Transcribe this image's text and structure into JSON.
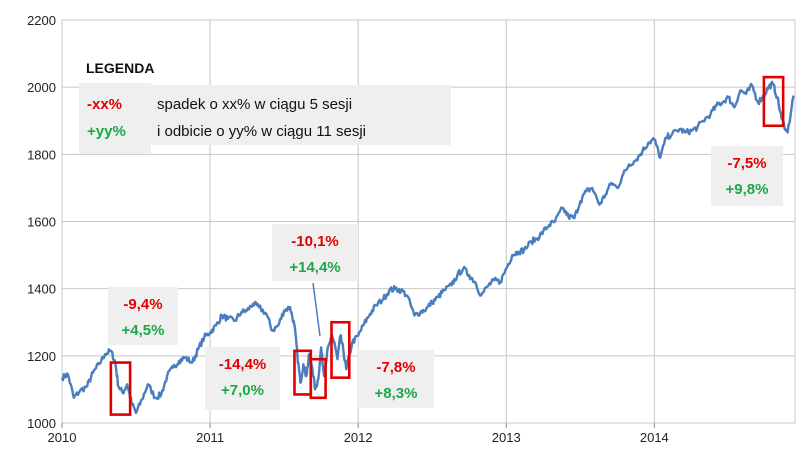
{
  "chart_data": {
    "type": "line",
    "title": "",
    "xlabel": "",
    "ylabel": "",
    "grid": true,
    "ylim": [
      1000,
      2200
    ],
    "y_ticks": [
      1000,
      1200,
      1400,
      1600,
      1800,
      2000,
      2200
    ],
    "x_ticks": [
      "2010",
      "2011",
      "2012",
      "2013",
      "2014"
    ],
    "xlim": [
      2010.0,
      2014.95
    ],
    "colors": {
      "line": "#4a7dbe",
      "box": "#e00000",
      "down": "#e00000",
      "up": "#1aa84a",
      "grid": "#c8c8c8",
      "ann_bg": "#efefef"
    },
    "series": [
      {
        "x": [
          2010.0,
          2010.04,
          2010.08,
          2010.12,
          2010.17,
          2010.21,
          2010.25,
          2010.29,
          2010.33,
          2010.36,
          2010.38,
          2010.41,
          2010.44,
          2010.47,
          2010.5,
          2010.54,
          2010.58,
          2010.63,
          2010.67,
          2010.71,
          2010.75,
          2010.79,
          2010.83,
          2010.88,
          2010.92,
          2010.96,
          2011.0,
          2011.04,
          2011.08,
          2011.12,
          2011.17,
          2011.21,
          2011.25,
          2011.29,
          2011.33,
          2011.38,
          2011.42,
          2011.46,
          2011.5,
          2011.54,
          2011.57,
          2011.59,
          2011.61,
          2011.63,
          2011.65,
          2011.67,
          2011.69,
          2011.71,
          2011.73,
          2011.75,
          2011.77,
          2011.79,
          2011.82,
          2011.84,
          2011.86,
          2011.88,
          2011.9,
          2011.92,
          2011.96,
          2012.0,
          2012.04,
          2012.08,
          2012.12,
          2012.17,
          2012.21,
          2012.25,
          2012.29,
          2012.33,
          2012.38,
          2012.42,
          2012.46,
          2012.5,
          2012.54,
          2012.58,
          2012.63,
          2012.67,
          2012.71,
          2012.75,
          2012.79,
          2012.83,
          2012.88,
          2012.92,
          2012.96,
          2013.0,
          2013.04,
          2013.08,
          2013.12,
          2013.17,
          2013.21,
          2013.25,
          2013.29,
          2013.33,
          2013.38,
          2013.42,
          2013.46,
          2013.5,
          2013.54,
          2013.58,
          2013.63,
          2013.67,
          2013.71,
          2013.75,
          2013.79,
          2013.83,
          2013.88,
          2013.92,
          2013.96,
          2014.0,
          2014.04,
          2014.08,
          2014.12,
          2014.17,
          2014.21,
          2014.25,
          2014.29,
          2014.33,
          2014.38,
          2014.42,
          2014.46,
          2014.5,
          2014.54,
          2014.58,
          2014.62,
          2014.66,
          2014.7,
          2014.74,
          2014.77,
          2014.8,
          2014.83,
          2014.86,
          2014.9,
          2014.94
        ],
        "values": [
          1135,
          1145,
          1075,
          1095,
          1110,
          1150,
          1175,
          1205,
          1215,
          1180,
          1110,
          1090,
          1115,
          1060,
          1030,
          1070,
          1115,
          1075,
          1085,
          1140,
          1165,
          1185,
          1195,
          1180,
          1220,
          1255,
          1270,
          1290,
          1320,
          1310,
          1305,
          1330,
          1335,
          1355,
          1345,
          1325,
          1275,
          1290,
          1335,
          1345,
          1290,
          1200,
          1120,
          1175,
          1140,
          1205,
          1165,
          1100,
          1130,
          1225,
          1140,
          1210,
          1255,
          1240,
          1190,
          1260,
          1215,
          1160,
          1240,
          1260,
          1295,
          1325,
          1350,
          1370,
          1395,
          1400,
          1395,
          1380,
          1320,
          1330,
          1340,
          1360,
          1375,
          1395,
          1410,
          1440,
          1460,
          1440,
          1420,
          1380,
          1410,
          1425,
          1420,
          1460,
          1500,
          1510,
          1515,
          1540,
          1550,
          1570,
          1590,
          1600,
          1640,
          1615,
          1610,
          1660,
          1690,
          1700,
          1650,
          1680,
          1715,
          1700,
          1740,
          1770,
          1785,
          1810,
          1835,
          1845,
          1790,
          1850,
          1860,
          1875,
          1865,
          1870,
          1880,
          1900,
          1920,
          1945,
          1955,
          1970,
          1940,
          1990,
          1980,
          2005,
          1955,
          1975,
          2000,
          2010,
          1970,
          1905,
          1865,
          1975
        ]
      }
    ],
    "legend": {
      "title": "LEGENDA",
      "down_sample": "-xx%",
      "up_sample": "+yy%",
      "line1": "spadek o xx% w ciągu 5 sesji",
      "line2": "i odbicie  o yy% w ciągu 11 sesji"
    },
    "annotations": [
      {
        "down": "-9,4%",
        "up": "+4,5%"
      },
      {
        "down": "-14,4%",
        "up": "+7,0%"
      },
      {
        "down": "-10,1%",
        "up": "+14,4%"
      },
      {
        "down": "-7,8%",
        "up": "+8,3%"
      },
      {
        "down": "-7,5%",
        "up": "+9,8%"
      }
    ]
  }
}
